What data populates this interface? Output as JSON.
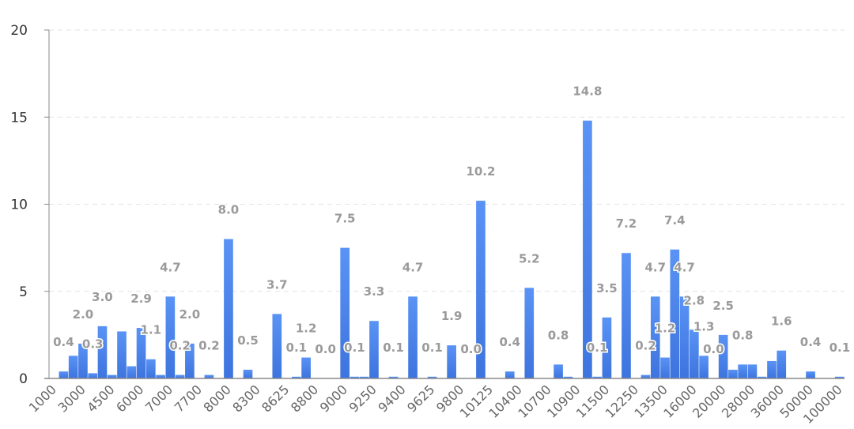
{
  "chart_data": {
    "type": "bar",
    "title": "",
    "xlabel": "",
    "ylabel": "",
    "ylim": [
      0,
      20
    ],
    "yticks": [
      "0",
      "5",
      "10",
      "15",
      "20"
    ],
    "grid": true,
    "tick_every": 3,
    "x_tick_labels": [
      "1000",
      "3000",
      "4500",
      "6000",
      "7000",
      "7700",
      "8000",
      "8300",
      "8625",
      "8800",
      "9000",
      "9250",
      "9400",
      "9625",
      "9800",
      "10125",
      "10400",
      "10700",
      "10900",
      "11500",
      "12250",
      "13500",
      "16000",
      "20000",
      "28000",
      "36000",
      "50000",
      "100000"
    ],
    "values": [
      0,
      0.4,
      1.3,
      2.0,
      0.3,
      3.0,
      0.2,
      2.7,
      0.7,
      2.9,
      1.1,
      0.2,
      4.7,
      0.2,
      2.0,
      0,
      0.2,
      0,
      8.0,
      0,
      0.5,
      0,
      0,
      3.7,
      0,
      0.1,
      1.2,
      0,
      0.0,
      0,
      7.5,
      0.1,
      0.1,
      3.3,
      0,
      0.1,
      0,
      4.7,
      0,
      0.1,
      0,
      1.9,
      0,
      0.0,
      10.2,
      0,
      0,
      0.4,
      0,
      5.2,
      0,
      0,
      0.8,
      0.1,
      0,
      14.8,
      0.1,
      3.5,
      0,
      7.2,
      0,
      0.2,
      4.7,
      1.2,
      7.4,
      4.7,
      2.8,
      1.3,
      0.0,
      2.5,
      0.5,
      0.8,
      0.8,
      0.1,
      1.0,
      1.6,
      0,
      0,
      0.4,
      0,
      0,
      0.1
    ],
    "labeled_indices": [
      1,
      3,
      4,
      5,
      9,
      10,
      12,
      13,
      14,
      16,
      18,
      20,
      23,
      25,
      26,
      28,
      30,
      31,
      33,
      35,
      37,
      39,
      41,
      43,
      44,
      47,
      49,
      52,
      55,
      56,
      57,
      59,
      61,
      62,
      63,
      64,
      65,
      66,
      67,
      68,
      69,
      71,
      75,
      78,
      81
    ],
    "colors": {
      "bar_top": "#5a93f5",
      "bar_bottom": "#3d74de",
      "label": "#9a9a9a",
      "grid": "#e3e3e3",
      "axis": "#888888"
    }
  }
}
